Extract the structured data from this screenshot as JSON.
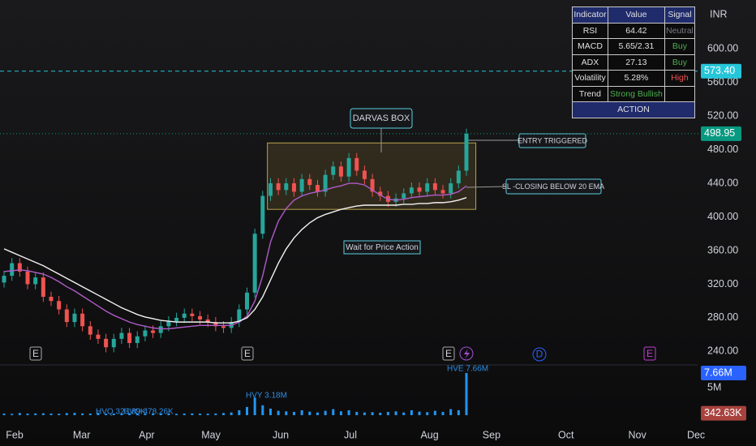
{
  "chart_data": {
    "type": "candlestick",
    "currency": "INR",
    "up_color": "#26a69a",
    "down_color": "#ef5350",
    "x": [
      0,
      1,
      2,
      3,
      4,
      5,
      6,
      7,
      8,
      9,
      10,
      11,
      12,
      13,
      14,
      15,
      16,
      17,
      18,
      19,
      20,
      21,
      22,
      23,
      24,
      25,
      26,
      27,
      28,
      29,
      30,
      31,
      32,
      33,
      34,
      35,
      36,
      37,
      38,
      39,
      40,
      41,
      42,
      43,
      44,
      45,
      46,
      47,
      48,
      49,
      50,
      51,
      52,
      53,
      54,
      55,
      56,
      57,
      58,
      59
    ],
    "open": [
      322,
      330,
      345,
      335,
      320,
      328,
      305,
      300,
      290,
      275,
      285,
      270,
      260,
      255,
      245,
      255,
      262,
      250,
      258,
      265,
      262,
      270,
      276,
      280,
      285,
      282,
      278,
      275,
      270,
      268,
      275,
      290,
      310,
      380,
      425,
      440,
      432,
      440,
      430,
      445,
      438,
      430,
      450,
      460,
      448,
      470,
      455,
      445,
      430,
      425,
      418,
      422,
      428,
      435,
      430,
      440,
      432,
      428,
      440,
      455
    ],
    "high": [
      336,
      351,
      351,
      341,
      334,
      334,
      311,
      306,
      296,
      291,
      291,
      276,
      266,
      261,
      261,
      268,
      268,
      264,
      271,
      271,
      276,
      282,
      286,
      291,
      291,
      288,
      284,
      281,
      276,
      281,
      296,
      316,
      386,
      431,
      446,
      446,
      446,
      446,
      451,
      451,
      444,
      456,
      466,
      466,
      476,
      476,
      461,
      451,
      436,
      431,
      428,
      434,
      441,
      441,
      446,
      446,
      438,
      446,
      461,
      505
    ],
    "low": [
      316,
      324,
      329,
      314,
      314,
      299,
      294,
      284,
      269,
      269,
      264,
      254,
      249,
      239,
      239,
      249,
      244,
      244,
      252,
      256,
      256,
      264,
      270,
      274,
      276,
      272,
      269,
      264,
      262,
      262,
      269,
      284,
      304,
      374,
      419,
      426,
      426,
      424,
      424,
      432,
      424,
      424,
      444,
      442,
      442,
      449,
      439,
      424,
      419,
      412,
      412,
      416,
      422,
      424,
      424,
      426,
      422,
      422,
      434,
      449
    ],
    "close": [
      330,
      345,
      335,
      320,
      328,
      305,
      300,
      290,
      275,
      285,
      270,
      260,
      255,
      245,
      255,
      262,
      250,
      258,
      265,
      262,
      270,
      276,
      280,
      285,
      282,
      278,
      275,
      270,
      268,
      275,
      290,
      310,
      380,
      425,
      440,
      432,
      440,
      430,
      445,
      438,
      430,
      450,
      460,
      448,
      470,
      455,
      445,
      430,
      425,
      418,
      422,
      428,
      435,
      430,
      440,
      432,
      428,
      440,
      455,
      499
    ],
    "lines": [
      {
        "color": "#b05bc9",
        "values": [
          335,
          336,
          337,
          336,
          334,
          332,
          328,
          323,
          317,
          312,
          306,
          300,
          294,
          288,
          283,
          279,
          275,
          272,
          270,
          268,
          267,
          267,
          268,
          269,
          270,
          271,
          271,
          271,
          271,
          271,
          275,
          282,
          300,
          330,
          370,
          395,
          410,
          420,
          425,
          428,
          430,
          432,
          435,
          437,
          440,
          440,
          438,
          432,
          426,
          421,
          420,
          421,
          423,
          424,
          425,
          426,
          426,
          427,
          430,
          437
        ]
      },
      {
        "color": "#f2f2f2",
        "values": [
          362,
          358,
          354,
          350,
          346,
          342,
          337,
          332,
          327,
          322,
          317,
          312,
          307,
          302,
          297,
          292,
          288,
          284,
          281,
          279,
          277,
          276,
          275,
          275,
          275,
          275,
          275,
          274,
          274,
          274,
          276,
          280,
          290,
          305,
          325,
          345,
          362,
          375,
          385,
          393,
          399,
          403,
          406,
          409,
          411,
          413,
          414,
          414,
          414,
          414,
          414,
          415,
          415,
          416,
          416,
          417,
          417,
          418,
          420,
          423
        ]
      }
    ],
    "xlim": [
      -0.52,
      88.5
    ],
    "xticks": [
      {
        "value": 1.35,
        "label": "Feb"
      },
      {
        "value": 9.9,
        "label": "Mar"
      },
      {
        "value": 18.2,
        "label": "Apr"
      },
      {
        "value": 26.4,
        "label": "May"
      },
      {
        "value": 35.3,
        "label": "Jun"
      },
      {
        "value": 44.2,
        "label": "Jul"
      },
      {
        "value": 54.3,
        "label": "Aug"
      },
      {
        "value": 62.2,
        "label": "Sep"
      },
      {
        "value": 71.7,
        "label": "Oct"
      },
      {
        "value": 80.8,
        "label": "Nov"
      },
      {
        "value": 88.3,
        "label": "Dec"
      }
    ],
    "ylim": [
      224,
      658
    ],
    "yticks": [
      {
        "value": 600,
        "label": "600.00"
      },
      {
        "value": 560,
        "label": "560.00"
      },
      {
        "value": 520,
        "label": "520.00"
      },
      {
        "value": 480,
        "label": "480.00"
      },
      {
        "value": 440,
        "label": "440.00"
      },
      {
        "value": 400,
        "label": "400.00"
      },
      {
        "value": 360,
        "label": "360.00"
      },
      {
        "value": 320,
        "label": "320.00"
      },
      {
        "value": 280,
        "label": "280.00"
      },
      {
        "value": 240,
        "label": "240.00"
      }
    ],
    "grid": false,
    "price_lines": [
      {
        "value": 573.4,
        "label": "573.40",
        "color": "#26c6da",
        "style": "dashed"
      },
      {
        "value": 498.95,
        "label": "498.95",
        "color": "#089981",
        "style": "dotted"
      }
    ],
    "darvas_box": {
      "label": "DARVAS BOX",
      "top": 488,
      "bottom": 409,
      "x": [
        33.6,
        60.2
      ]
    },
    "annotations": {
      "entry": "ENTRY TRIGGERED",
      "stop_loss": "SL -CLOSING BELOW 20 EMA",
      "wait": "Wait for Price Action"
    },
    "events": [
      "E",
      "E",
      "E",
      "D",
      "E"
    ],
    "volume": {
      "color": "#2196f3",
      "values": [
        300000,
        250000,
        400000,
        280000,
        320000,
        350000,
        300000,
        260000,
        380000,
        420000,
        330000,
        300000,
        450000,
        280000,
        310000,
        290000,
        350000,
        270000,
        260000,
        300000,
        320000,
        280000,
        250000,
        300000,
        330000,
        290000,
        270000,
        310000,
        400000,
        500000,
        900000,
        1500000,
        3180000,
        1800000,
        1200000,
        800000,
        700000,
        600000,
        900000,
        650000,
        500000,
        800000,
        1100000,
        700000,
        900000,
        600000,
        500000,
        550000,
        450000,
        600000,
        700000,
        500000,
        900000,
        650000,
        550000,
        800000,
        600000,
        1100000,
        900000,
        7660000
      ],
      "ylim": [
        0,
        9140000
      ],
      "yticks": [
        {
          "value": 5000000,
          "label": "5M"
        }
      ],
      "markers": [
        {
          "value": 7660000,
          "label": "7.66M",
          "color": "#2962ff"
        },
        {
          "value": 342630,
          "label": "342.63K",
          "color": "#a8423d"
        }
      ],
      "annotations": [
        "HVY 3.18M",
        "HVE 7.66M",
        "HVQ 323.89K",
        "HVQ 478.26K"
      ]
    }
  },
  "table": {
    "header": [
      "Indicator",
      "Value",
      "Signal"
    ],
    "rows": [
      [
        "RSI",
        "64.42",
        "Neutral"
      ],
      [
        "MACD",
        "5.65/2.31",
        "Buy"
      ],
      [
        "ADX",
        "27.13",
        "Buy"
      ],
      [
        "Volatility",
        "5.28%",
        "High"
      ],
      [
        "Trend",
        "Strong Bullish"
      ]
    ],
    "footer": "ACTION"
  }
}
